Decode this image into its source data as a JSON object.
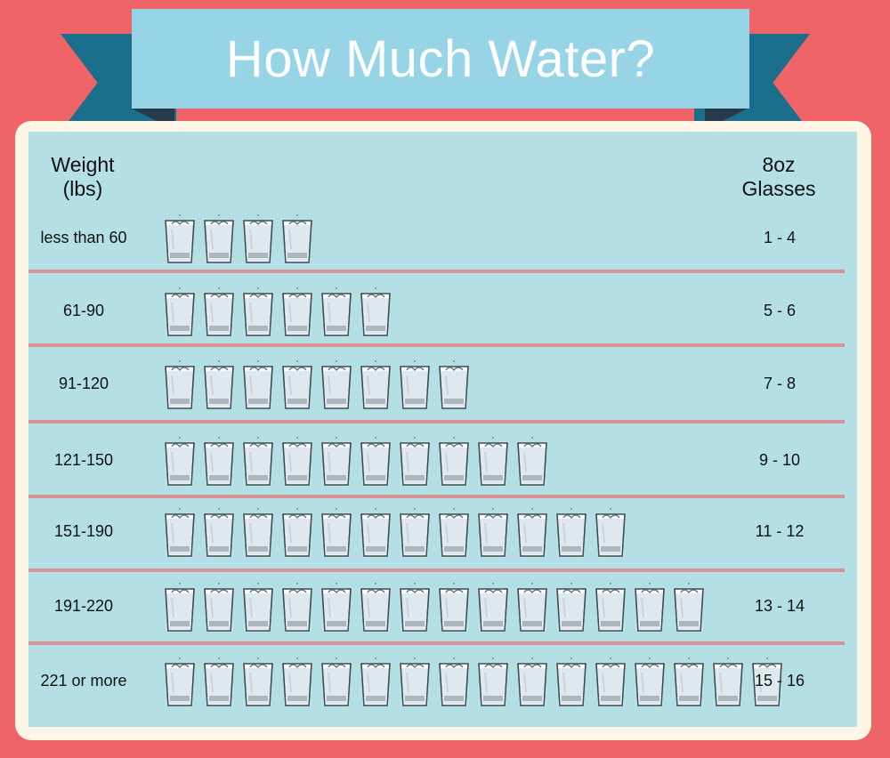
{
  "title": "How Much Water?",
  "headers": {
    "weight_line1": "Weight",
    "weight_line2": "(lbs)",
    "glasses_line1": "8oz",
    "glasses_line2": "Glasses"
  },
  "colors": {
    "background": "#ee6467",
    "banner": "#97d4e6",
    "ribbon": "#1b6e8c",
    "panel": "#b4e0e5",
    "divider": "#d99196"
  },
  "chart_data": {
    "type": "bar",
    "categories": [
      "less than 60",
      "61-90",
      "91-120",
      "121-150",
      "151-190",
      "191-220",
      "221 or more"
    ],
    "values": [
      4,
      6,
      8,
      10,
      12,
      14,
      16
    ],
    "glasses_labels": [
      "1 - 4",
      "5 - 6",
      "7 - 8",
      "9 - 10",
      "11 - 12",
      "13 - 14",
      "15 - 16"
    ],
    "mark_icon": "water-glass-icon"
  }
}
